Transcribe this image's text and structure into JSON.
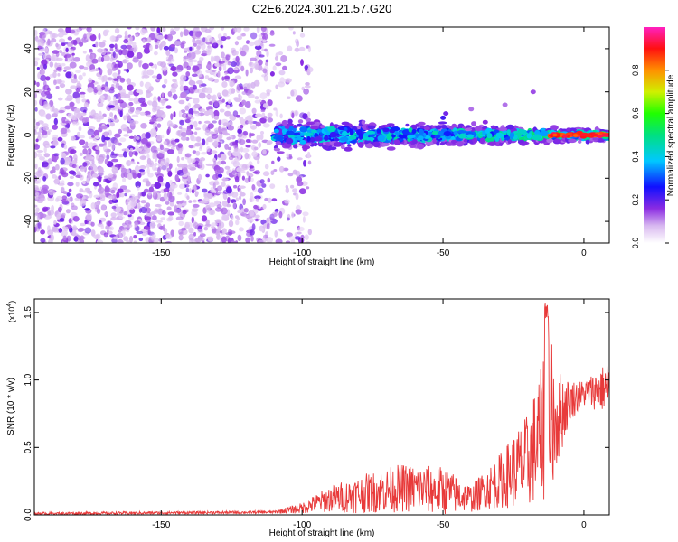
{
  "title": "C2E6.2024.301.21.57.G20",
  "chart_data": [
    {
      "type": "heatmap",
      "xlabel": "Height of straight line (km)",
      "ylabel": "Frequency (Hz)",
      "xlim": [
        -195,
        9
      ],
      "ylim": [
        -50,
        50
      ],
      "xticks": [
        -150,
        -100,
        -50,
        0
      ],
      "yticks": [
        -40,
        -20,
        0,
        20,
        40
      ],
      "colorbar": {
        "label": "Normalized spectral amplitude",
        "ticks": [
          "0.0",
          "0.2",
          "0.4",
          "0.6",
          "0.8"
        ],
        "range": [
          0,
          1
        ]
      },
      "description_regions": [
        {
          "x_range": [
            -195,
            -105
          ],
          "freq_range": [
            -50,
            50
          ],
          "amplitude": [
            0.0,
            0.1
          ],
          "pattern": "scattered noise speckle"
        },
        {
          "x_range": [
            -110,
            9
          ],
          "freq_center": 0,
          "freq_halfwidth": [
            2,
            8
          ],
          "amplitude": [
            0.1,
            0.6
          ],
          "pattern": "signal band near 0 Hz"
        },
        {
          "x_range": [
            -12,
            9
          ],
          "freq_center": 0,
          "amplitude": [
            0.8,
            1.0
          ],
          "pattern": "strong signal near 0 Hz"
        }
      ]
    },
    {
      "type": "line",
      "xlabel": "Height of straight line (km)",
      "ylabel": "SNR (10 * v/v)",
      "y_multiplier": "(x10",
      "y_multiplier_exp": "4",
      "xlim": [
        -195,
        9
      ],
      "ylim": [
        0,
        1.6
      ],
      "xticks": [
        -150,
        -100,
        -50,
        0
      ],
      "yticks": [
        "0.0",
        "0.5",
        "1.0",
        "1.5"
      ],
      "color": "#e83a3a",
      "envelope": [
        {
          "x": -195,
          "mean": 0.01,
          "amp": 0.01
        },
        {
          "x": -110,
          "mean": 0.02,
          "amp": 0.01
        },
        {
          "x": -100,
          "mean": 0.05,
          "amp": 0.04
        },
        {
          "x": -90,
          "mean": 0.12,
          "amp": 0.1
        },
        {
          "x": -80,
          "mean": 0.15,
          "amp": 0.14
        },
        {
          "x": -65,
          "mean": 0.2,
          "amp": 0.18
        },
        {
          "x": -50,
          "mean": 0.18,
          "amp": 0.18
        },
        {
          "x": -40,
          "mean": 0.12,
          "amp": 0.1
        },
        {
          "x": -30,
          "mean": 0.25,
          "amp": 0.2
        },
        {
          "x": -20,
          "mean": 0.4,
          "amp": 0.35
        },
        {
          "x": -15,
          "mean": 0.6,
          "amp": 0.5
        },
        {
          "x": -13,
          "mean": 0.8,
          "amp": 0.7
        },
        {
          "x": -10,
          "mean": 0.7,
          "amp": 0.4
        },
        {
          "x": -5,
          "mean": 0.85,
          "amp": 0.15
        },
        {
          "x": 0,
          "mean": 0.9,
          "amp": 0.1
        },
        {
          "x": 9,
          "mean": 0.95,
          "amp": 0.2
        }
      ]
    }
  ]
}
